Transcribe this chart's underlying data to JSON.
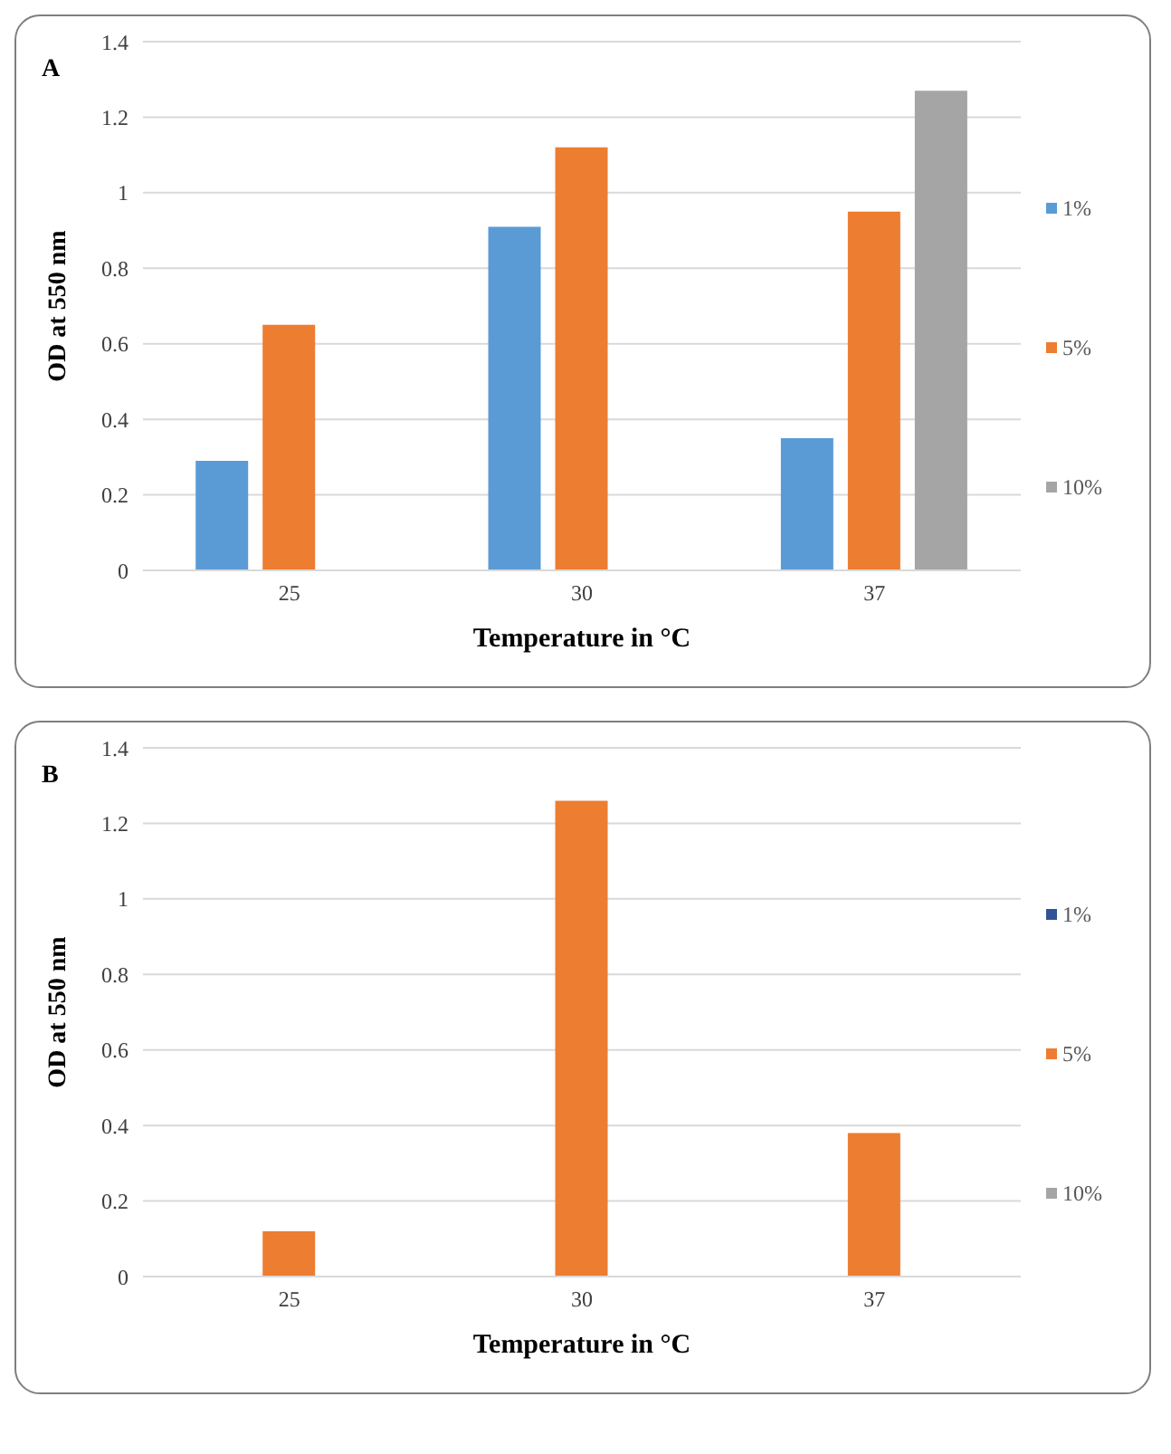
{
  "chart_data": [
    {
      "type": "bar",
      "title": "A",
      "categories": [
        "25",
        "30",
        "37"
      ],
      "xlabel": "Temperature in °C",
      "ylabel": "OD at 550 nm",
      "ylim": [
        0,
        1.4
      ],
      "yticks": [
        0,
        0.2,
        0.4,
        0.6,
        0.8,
        1,
        1.2,
        1.4
      ],
      "grid": "y",
      "legend": "right",
      "series": [
        {
          "name": "1%",
          "color": "#5b9bd5",
          "values": [
            0.29,
            0.91,
            0.35
          ]
        },
        {
          "name": "5%",
          "color": "#ed7d31",
          "values": [
            0.65,
            1.12,
            0.95
          ]
        },
        {
          "name": "10%",
          "color": "#a5a5a5",
          "values": [
            null,
            null,
            1.27
          ]
        }
      ]
    },
    {
      "type": "bar",
      "title": "B",
      "categories": [
        "25",
        "30",
        "37"
      ],
      "xlabel": "Temperature in °C",
      "ylabel": "OD at 550 nm",
      "ylim": [
        0,
        1.4
      ],
      "yticks": [
        0,
        0.2,
        0.4,
        0.6,
        0.8,
        1,
        1.2,
        1.4
      ],
      "grid": "y",
      "legend": "right",
      "series": [
        {
          "name": "1%",
          "color": "#2f5597",
          "values": [
            null,
            null,
            null
          ]
        },
        {
          "name": "5%",
          "color": "#ed7d31",
          "values": [
            0.12,
            1.26,
            0.38
          ]
        },
        {
          "name": "10%",
          "color": "#a5a5a5",
          "values": [
            null,
            null,
            null
          ]
        }
      ]
    }
  ]
}
